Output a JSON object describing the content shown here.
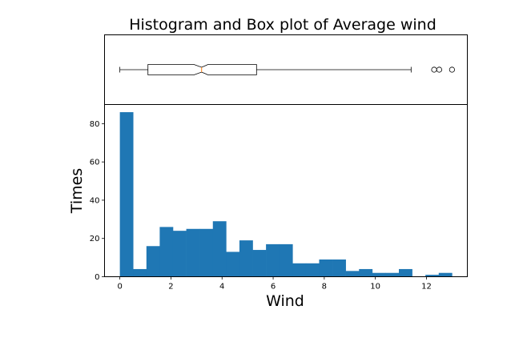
{
  "chart_data": [
    {
      "type": "box",
      "title": "Histogram and Box plot of Average wind",
      "orientation": "horizontal",
      "notched": true,
      "whisker_low": 0,
      "q1": 1.1,
      "median": 3.2,
      "q3": 5.35,
      "notch_low": 2.9,
      "notch_high": 3.45,
      "whisker_high": 11.4,
      "outliers": [
        12.3,
        12.5,
        13.0
      ],
      "xlim": [
        -0.6,
        13.6
      ],
      "shares_x_with_histogram": true
    },
    {
      "type": "bar",
      "subtype": "histogram",
      "xlabel": "Wind",
      "ylabel": "Times",
      "color": "#1f77b4",
      "bin_width": 0.52,
      "bin_start": 0,
      "values": [
        86,
        4,
        16,
        26,
        24,
        25,
        25,
        29,
        13,
        19,
        14,
        17,
        17,
        7,
        7,
        9,
        9,
        3,
        4,
        2,
        2,
        4,
        0,
        1,
        2
      ],
      "xlim": [
        -0.6,
        13.6
      ],
      "ylim": [
        0,
        90
      ],
      "xticks": [
        "0",
        "2",
        "4",
        "6",
        "8",
        "10",
        "12"
      ],
      "xtick_values": [
        0,
        2,
        4,
        6,
        8,
        10,
        12
      ],
      "yticks": [
        "0",
        "20",
        "40",
        "60",
        "80"
      ],
      "ytick_values": [
        0,
        20,
        40,
        60,
        80
      ]
    }
  ]
}
